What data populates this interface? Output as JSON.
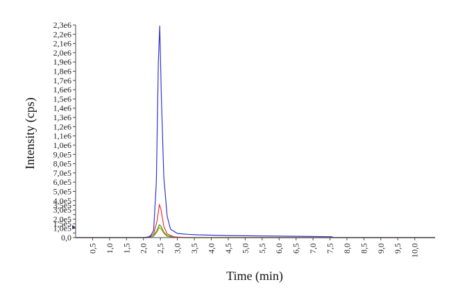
{
  "chart_data": {
    "type": "line",
    "title": "",
    "xlabel": "Time (min)",
    "ylabel": "Intensity (cps)",
    "xlim": [
      0,
      10.6
    ],
    "ylim": [
      0,
      2300000
    ],
    "x_tick_values": [
      0.5,
      1.0,
      1.5,
      2.0,
      2.5,
      3.0,
      3.5,
      4.0,
      4.5,
      5.0,
      5.5,
      6.0,
      6.5,
      7.0,
      7.5,
      8.0,
      8.5,
      9.0,
      9.5,
      10.0
    ],
    "x_tick_labels": [
      "0,5",
      "1,0",
      "1,5",
      "2,0",
      "2,5",
      "3,0",
      "3,5",
      "4,0",
      "4,5",
      "5,0",
      "5,5",
      "6,0",
      "6,5",
      "7,0",
      "7,5",
      "8,0",
      "8,5",
      "9,0",
      "9,5",
      "10,0"
    ],
    "y_tick_values": [
      0,
      50000,
      100000,
      150000,
      200000,
      250000,
      300000,
      350000,
      400000,
      500000,
      600000,
      700000,
      800000,
      900000,
      1000000,
      1100000,
      1200000,
      1300000,
      1400000,
      1500000,
      1600000,
      1700000,
      1800000,
      1900000,
      2000000,
      2100000,
      2200000,
      2300000
    ],
    "y_tick_labels": [
      "0,0",
      "5,0e4",
      "1,0e5",
      "1,5e5",
      "2,0e5",
      "2,5e5",
      "3,0e5",
      "3,5e5",
      "4,0e5",
      "5,0e5",
      "6,0e5",
      "7,0e5",
      "8,0e5",
      "9,0e5",
      "1,0e6",
      "1,1e6",
      "1,2e6",
      "1,3e6",
      "1,4e6",
      "1,5e6",
      "1,6e6",
      "1,7e6",
      "1,8e6",
      "1,9e6",
      "2,0e6",
      "2,1e6",
      "2,2e6",
      "2,3e6"
    ],
    "series": [
      {
        "color": "#3333cc",
        "x": [
          0.0,
          2.0,
          2.2,
          2.3,
          2.38,
          2.44,
          2.48,
          2.53,
          2.6,
          2.7,
          2.8,
          3.0,
          3.3,
          3.6,
          4.5,
          5.5,
          6.5,
          7.55,
          7.6,
          10.6
        ],
        "y": [
          0,
          0,
          10000,
          80000,
          600000,
          1900000,
          2290000,
          1500000,
          650000,
          230000,
          90000,
          45000,
          35000,
          30000,
          22000,
          18000,
          14000,
          10000,
          0,
          0
        ]
      },
      {
        "color": "#ee3333",
        "x": [
          0.0,
          2.1,
          2.3,
          2.4,
          2.47,
          2.52,
          2.6,
          2.7,
          2.9,
          3.2,
          4.0,
          10.6
        ],
        "y": [
          0,
          0,
          40000,
          180000,
          360000,
          300000,
          120000,
          40000,
          8000,
          2000,
          0,
          0
        ]
      },
      {
        "color": "#229922",
        "x": [
          0.0,
          2.1,
          2.3,
          2.4,
          2.47,
          2.52,
          2.6,
          2.7,
          2.9,
          3.2,
          4.0,
          10.6
        ],
        "y": [
          0,
          0,
          20000,
          80000,
          140000,
          120000,
          60000,
          20000,
          5000,
          0,
          0,
          0
        ]
      },
      {
        "color": "#c8a000",
        "x": [
          0.0,
          2.1,
          2.3,
          2.4,
          2.47,
          2.52,
          2.6,
          2.7,
          2.9,
          3.2,
          4.0,
          10.6
        ],
        "y": [
          0,
          0,
          15000,
          60000,
          110000,
          95000,
          45000,
          15000,
          3000,
          0,
          0,
          0
        ]
      }
    ]
  }
}
